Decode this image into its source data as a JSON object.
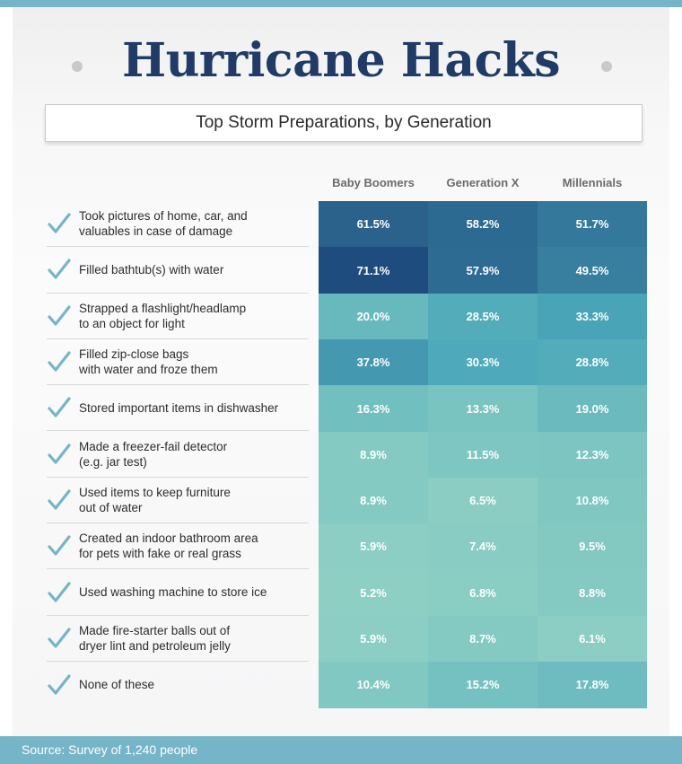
{
  "title": "Hurricane Hacks",
  "subtitle": "Top Storm Preparations, by Generation",
  "source": "Source: Survey of 1,240 people",
  "chart_data": {
    "type": "heatmap",
    "columns": [
      "Baby Boomers",
      "Generation X",
      "Millennials"
    ],
    "rows": [
      "Took pictures of home, car, and\nvaluables in case of damage",
      "Filled bathtub(s) with water",
      "Strapped a flashlight/headlamp\nto an object for light",
      "Filled zip-close bags\nwith water and froze them",
      "Stored important items in dishwasher",
      "Made a freezer-fail detector\n(e.g. jar test)",
      "Used items to keep furniture\nout of water",
      "Created an indoor bathroom area\nfor pets with fake or real grass",
      "Used washing machine to store ice",
      "Made fire-starter balls out of\ndryer lint and petroleum jelly",
      "None of these"
    ],
    "values": [
      [
        61.5,
        58.2,
        51.7
      ],
      [
        71.1,
        57.9,
        49.5
      ],
      [
        20.0,
        28.5,
        33.3
      ],
      [
        37.8,
        30.3,
        28.8
      ],
      [
        16.3,
        13.3,
        19.0
      ],
      [
        8.9,
        11.5,
        12.3
      ],
      [
        8.9,
        6.5,
        10.8
      ],
      [
        5.9,
        7.4,
        9.5
      ],
      [
        5.2,
        6.8,
        8.8
      ],
      [
        5.9,
        8.7,
        6.1
      ],
      [
        10.4,
        15.2,
        17.8
      ]
    ],
    "value_suffix": "%",
    "colors": {
      "low": "#9bd7c6",
      "mid": "#4aa7b9",
      "high": "#1f4c7e"
    }
  },
  "colors": {
    "title": "#1f3b66",
    "accent_bar": "#76b5c7",
    "checkmark": "#76b5c7"
  },
  "icons": {
    "row_marker": "checkmark-icon"
  }
}
